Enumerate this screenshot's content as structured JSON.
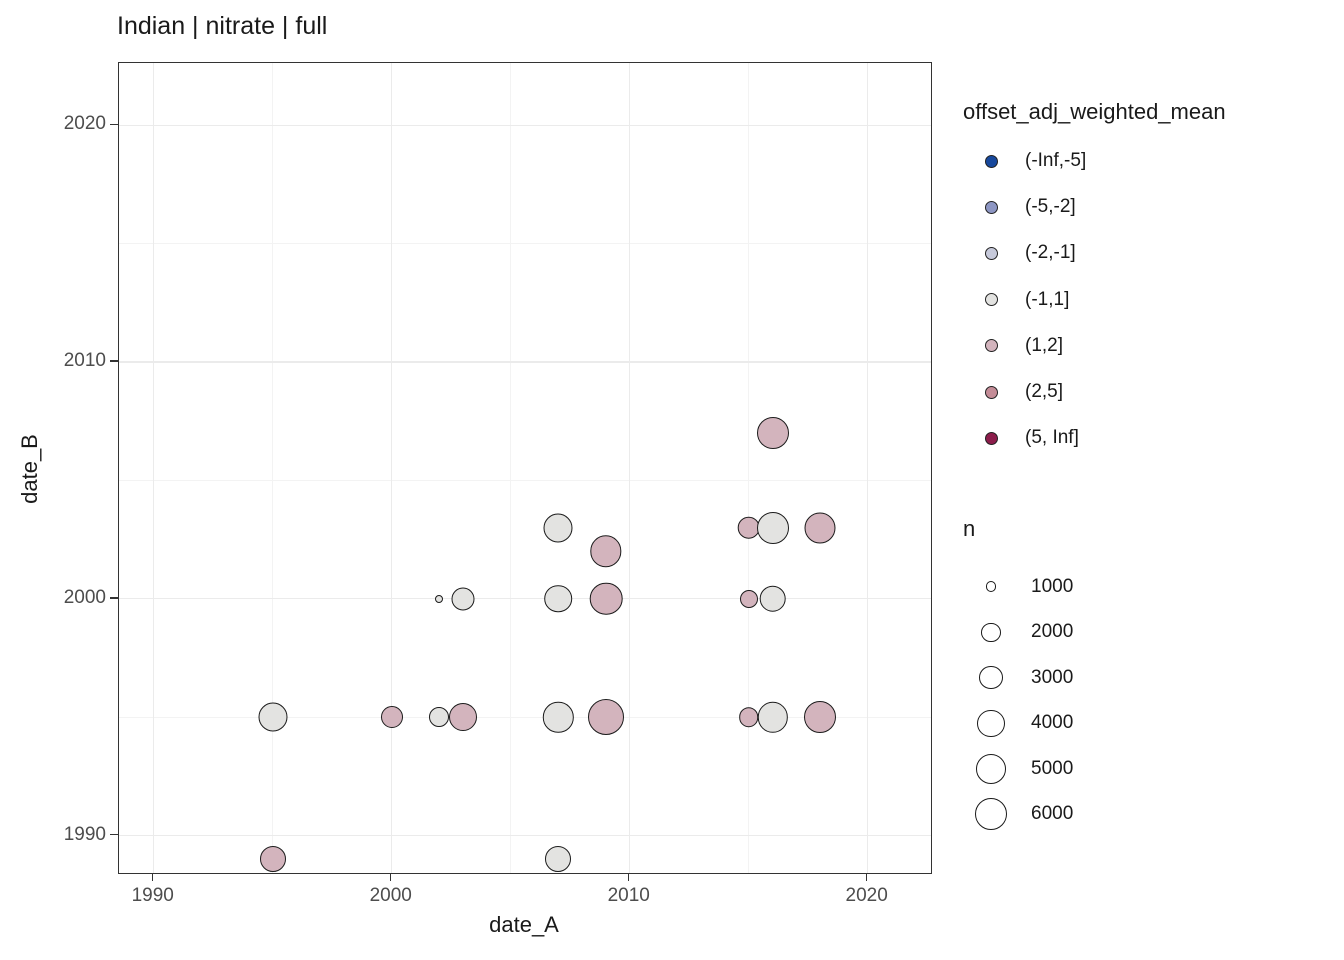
{
  "title": "Indian | nitrate | full",
  "colors": {
    "background": "#ffffff",
    "panel_border": "#333333",
    "grid_major": "#ebebeb",
    "grid_minor": "#f3f3f3",
    "tick_label": "#4d4d4d",
    "text": "#1a1a1a",
    "point_stroke": "#1b1b1b"
  },
  "chart_data": {
    "type": "scatter",
    "title": "Indian | nitrate | full",
    "xlabel": "date_A",
    "ylabel": "date_B",
    "xlim": [
      1988.54,
      2022.66
    ],
    "ylim": [
      1988.42,
      2022.63
    ],
    "x_ticks": [
      1990,
      2000,
      2010,
      2020
    ],
    "y_ticks": [
      1990,
      2000,
      2010,
      2020
    ],
    "x_minor_ticks": [
      1995,
      2005,
      2015
    ],
    "y_minor_ticks": [
      1995,
      2005,
      2015
    ],
    "grid": true,
    "legend_position": "right",
    "palette": {
      "(-Inf,-5]": "#17489c",
      "(-5,-2]": "#8d96c3",
      "(-2,-1]": "#c6c9da",
      "(-1,1]": "#e3e3e1",
      "(1,2]": "#d3b4bd",
      "(2,5]": "#c48c97",
      "(5, Inf]": "#8c1d4b"
    },
    "color_legend": {
      "title": "offset_adj_weighted_mean",
      "items": [
        {
          "label": "(-Inf,-5]",
          "color": "#17489c"
        },
        {
          "label": "(-5,-2]",
          "color": "#8d96c3"
        },
        {
          "label": "(-2,-1]",
          "color": "#c6c9da"
        },
        {
          "label": "(-1,1]",
          "color": "#e3e3e1"
        },
        {
          "label": "(1,2]",
          "color": "#d3b4bd"
        },
        {
          "label": "(2,5]",
          "color": "#c48c97"
        },
        {
          "label": "(5, Inf]",
          "color": "#8c1d4b"
        }
      ]
    },
    "size_legend": {
      "title": "n",
      "items": [
        {
          "label": "1000",
          "r": 5.3
        },
        {
          "label": "2000",
          "r": 9.7
        },
        {
          "label": "3000",
          "r": 11.7
        },
        {
          "label": "4000",
          "r": 13.7
        },
        {
          "label": "5000",
          "r": 15.0
        },
        {
          "label": "6000",
          "r": 16.0
        }
      ]
    },
    "points": [
      {
        "x": 1995,
        "y": 1989,
        "bin": "(1,2]",
        "n": 3800,
        "r": 13.0
      },
      {
        "x": 2007,
        "y": 1989,
        "bin": "(-1,1]",
        "n": 3800,
        "r": 13.0
      },
      {
        "x": 1995,
        "y": 1995,
        "bin": "(-1,1]",
        "n": 4800,
        "r": 14.5
      },
      {
        "x": 2000,
        "y": 1995,
        "bin": "(1,2]",
        "n": 2700,
        "r": 11.0
      },
      {
        "x": 2002,
        "y": 1995,
        "bin": "(-1,1]",
        "n": 2300,
        "r": 10.0
      },
      {
        "x": 2003,
        "y": 1995,
        "bin": "(1,2]",
        "n": 4400,
        "r": 14.0
      },
      {
        "x": 2007,
        "y": 1995,
        "bin": "(-1,1]",
        "n": 5200,
        "r": 15.2
      },
      {
        "x": 2009,
        "y": 1995,
        "bin": "(1,2]",
        "n": 7300,
        "r": 18.0
      },
      {
        "x": 2015,
        "y": 1995,
        "bin": "(1,2]",
        "n": 2200,
        "r": 9.8
      },
      {
        "x": 2016,
        "y": 1995,
        "bin": "(-1,1]",
        "n": 5200,
        "r": 15.2
      },
      {
        "x": 2018,
        "y": 1995,
        "bin": "(1,2]",
        "n": 5800,
        "r": 16.0
      },
      {
        "x": 2002,
        "y": 2000,
        "bin": "(-1,1]",
        "n": 360,
        "r": 4.0
      },
      {
        "x": 2003,
        "y": 2000,
        "bin": "(-1,1]",
        "n": 3000,
        "r": 11.5
      },
      {
        "x": 2007,
        "y": 2000,
        "bin": "(-1,1]",
        "n": 4300,
        "r": 13.8
      },
      {
        "x": 2009,
        "y": 2000,
        "bin": "(1,2]",
        "n": 6000,
        "r": 16.3
      },
      {
        "x": 2015,
        "y": 2000,
        "bin": "(1,2]",
        "n": 1800,
        "r": 9.0
      },
      {
        "x": 2016,
        "y": 2000,
        "bin": "(-1,1]",
        "n": 4000,
        "r": 13.3
      },
      {
        "x": 2009,
        "y": 2002,
        "bin": "(1,2]",
        "n": 5600,
        "r": 15.7
      },
      {
        "x": 2007,
        "y": 2003,
        "bin": "(-1,1]",
        "n": 4800,
        "r": 14.5
      },
      {
        "x": 2015,
        "y": 2003,
        "bin": "(1,2]",
        "n": 2900,
        "r": 11.3
      },
      {
        "x": 2016,
        "y": 2003,
        "bin": "(-1,1]",
        "n": 5800,
        "r": 16.0
      },
      {
        "x": 2018,
        "y": 2003,
        "bin": "(1,2]",
        "n": 5400,
        "r": 15.5
      },
      {
        "x": 2016,
        "y": 2007,
        "bin": "(1,2]",
        "n": 5800,
        "r": 16.0
      }
    ]
  }
}
